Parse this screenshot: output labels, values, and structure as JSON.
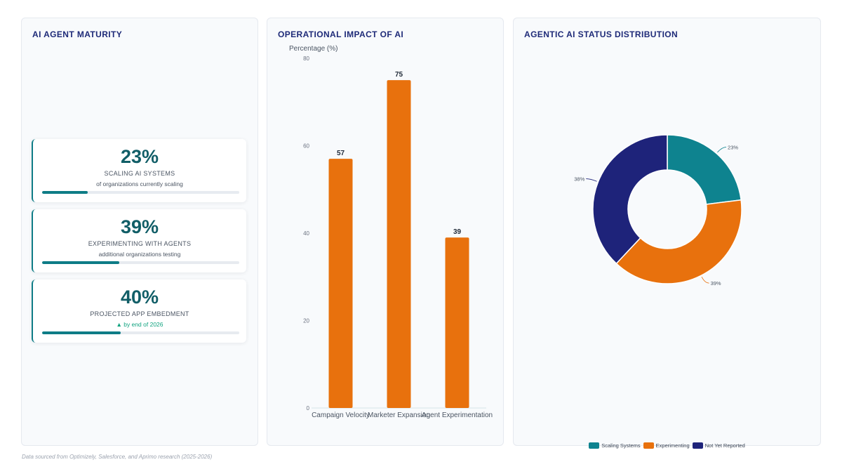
{
  "maturity": {
    "title": "AI AGENT MATURITY",
    "cards": [
      {
        "value": "23%",
        "label": "SCALING AI SYSTEMS",
        "sub": "of organizations currently scaling",
        "progress": 0.23
      },
      {
        "value": "39%",
        "label": "EXPERIMENTING WITH AGENTS",
        "sub": "additional organizations testing",
        "progress": 0.39
      },
      {
        "value": "40%",
        "label": "PROJECTED APP EMBEDMENT",
        "sub": "▲ by end of 2026",
        "progress": 0.4
      }
    ]
  },
  "impact": {
    "title": "OPERATIONAL IMPACT OF AI"
  },
  "status": {
    "title": "AGENTIC AI STATUS DISTRIBUTION"
  },
  "footer": "Data sourced from Optimizely, Salesforce, and Aprimo research (2025-2026)",
  "colors": {
    "teal": "#0e838f",
    "orange": "#e8710d",
    "navy": "#1e237a"
  },
  "chart_data": [
    {
      "type": "bar",
      "title": "OPERATIONAL IMPACT OF AI",
      "ylabel": "Percentage (%)",
      "xlabel": "",
      "categories": [
        "Campaign Velocity",
        "Marketer Expansion",
        "Agent Experimentation"
      ],
      "values": [
        57,
        75,
        39
      ],
      "ylim": [
        0,
        80
      ],
      "yticks": [
        0,
        20,
        40,
        60,
        80
      ],
      "color": "#e8710d",
      "data_labels": true,
      "grid": false
    },
    {
      "type": "pie",
      "title": "AGENTIC AI STATUS DISTRIBUTION",
      "donut": true,
      "slices": [
        {
          "label": "Scaling Systems",
          "value": 23,
          "display": "23%",
          "color": "#0e838f"
        },
        {
          "label": "Experimenting",
          "value": 39,
          "display": "39%",
          "color": "#e8710d"
        },
        {
          "label": "Not Yet Reported",
          "value": 38,
          "display": "38%",
          "color": "#1e237a"
        }
      ],
      "legend_position": "bottom"
    }
  ]
}
